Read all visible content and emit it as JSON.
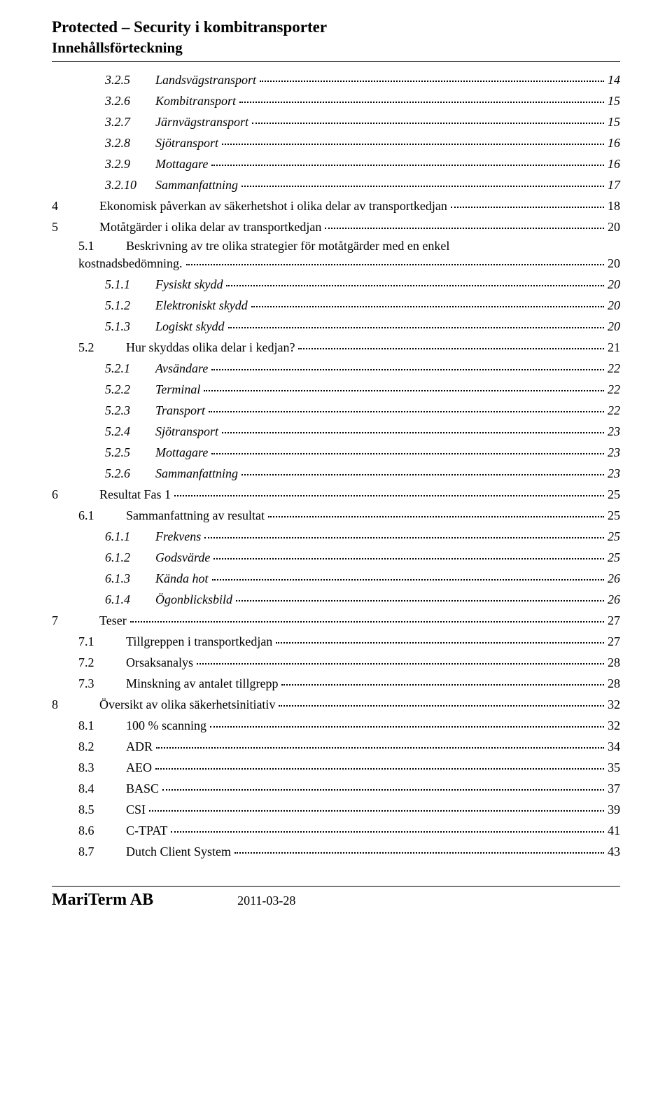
{
  "header": {
    "line1": "Protected – Security i kombitransporter",
    "line2": "Innehållsförteckning"
  },
  "toc": [
    {
      "level": "2",
      "num": "3.2.5",
      "title": "Landsvägstransport",
      "page": "14"
    },
    {
      "level": "2",
      "num": "3.2.6",
      "title": "Kombitransport",
      "page": "15"
    },
    {
      "level": "2",
      "num": "3.2.7",
      "title": "Järnvägstransport",
      "page": "15"
    },
    {
      "level": "2",
      "num": "3.2.8",
      "title": "Sjötransport",
      "page": "16"
    },
    {
      "level": "2",
      "num": "3.2.9",
      "title": "Mottagare",
      "page": "16"
    },
    {
      "level": "2",
      "num": "3.2.10",
      "title": "Sammanfattning",
      "page": "17"
    },
    {
      "level": "b",
      "num": "4",
      "title": "Ekonomisk påverkan av säkerhetshot i olika delar av transportkedjan",
      "page": "18"
    },
    {
      "level": "b",
      "num": "5",
      "title": "Motåtgärder i olika delar av transportkedjan",
      "page": "20"
    },
    {
      "level": "1",
      "num": "5.1",
      "title": "Beskrivning av tre olika strategier för motåtgärder med en enkel kostnadsbedömning.",
      "page": "20",
      "wrap": true
    },
    {
      "level": "2",
      "num": "5.1.1",
      "title": "Fysiskt skydd",
      "page": "20"
    },
    {
      "level": "2",
      "num": "5.1.2",
      "title": "Elektroniskt skydd",
      "page": "20"
    },
    {
      "level": "2",
      "num": "5.1.3",
      "title": "Logiskt skydd",
      "page": "20"
    },
    {
      "level": "1",
      "num": "5.2",
      "title": "Hur skyddas olika delar i kedjan?",
      "page": "21"
    },
    {
      "level": "2",
      "num": "5.2.1",
      "title": "Avsändare",
      "page": "22"
    },
    {
      "level": "2",
      "num": "5.2.2",
      "title": "Terminal",
      "page": "22"
    },
    {
      "level": "2",
      "num": "5.2.3",
      "title": "Transport",
      "page": "22"
    },
    {
      "level": "2",
      "num": "5.2.4",
      "title": "Sjötransport",
      "page": "23"
    },
    {
      "level": "2",
      "num": "5.2.5",
      "title": "Mottagare",
      "page": "23"
    },
    {
      "level": "2",
      "num": "5.2.6",
      "title": "Sammanfattning",
      "page": "23"
    },
    {
      "level": "b",
      "num": "6",
      "title": "Resultat Fas 1",
      "page": "25"
    },
    {
      "level": "1",
      "num": "6.1",
      "title": "Sammanfattning av resultat",
      "page": "25"
    },
    {
      "level": "2",
      "num": "6.1.1",
      "title": "Frekvens",
      "page": "25"
    },
    {
      "level": "2",
      "num": "6.1.2",
      "title": "Godsvärde",
      "page": "25"
    },
    {
      "level": "2",
      "num": "6.1.3",
      "title": "Kända hot",
      "page": "26"
    },
    {
      "level": "2",
      "num": "6.1.4",
      "title": "Ögonblicksbild",
      "page": "26"
    },
    {
      "level": "b",
      "num": "7",
      "title": "Teser",
      "page": "27"
    },
    {
      "level": "1",
      "num": "7.1",
      "title": "Tillgreppen i transportkedjan",
      "page": "27"
    },
    {
      "level": "1",
      "num": "7.2",
      "title": "Orsaksanalys",
      "page": "28"
    },
    {
      "level": "1",
      "num": "7.3",
      "title": "Minskning av antalet tillgrepp",
      "page": "28"
    },
    {
      "level": "b",
      "num": "8",
      "title": "Översikt av olika säkerhetsinitiativ",
      "page": "32"
    },
    {
      "level": "1",
      "num": "8.1",
      "title": "100 % scanning",
      "page": "32"
    },
    {
      "level": "1",
      "num": "8.2",
      "title": "ADR",
      "page": "34"
    },
    {
      "level": "1",
      "num": "8.3",
      "title": "AEO",
      "page": "35"
    },
    {
      "level": "1",
      "num": "8.4",
      "title": "BASC",
      "page": "37"
    },
    {
      "level": "1",
      "num": "8.5",
      "title": "CSI",
      "page": "39"
    },
    {
      "level": "1",
      "num": "8.6",
      "title": "C-TPAT",
      "page": "41"
    },
    {
      "level": "1",
      "num": "8.7",
      "title": "Dutch Client System",
      "page": "43"
    }
  ],
  "footer": {
    "brand_main": "MariTerm",
    "brand_sub": " AB",
    "date": "2011-03-28"
  }
}
